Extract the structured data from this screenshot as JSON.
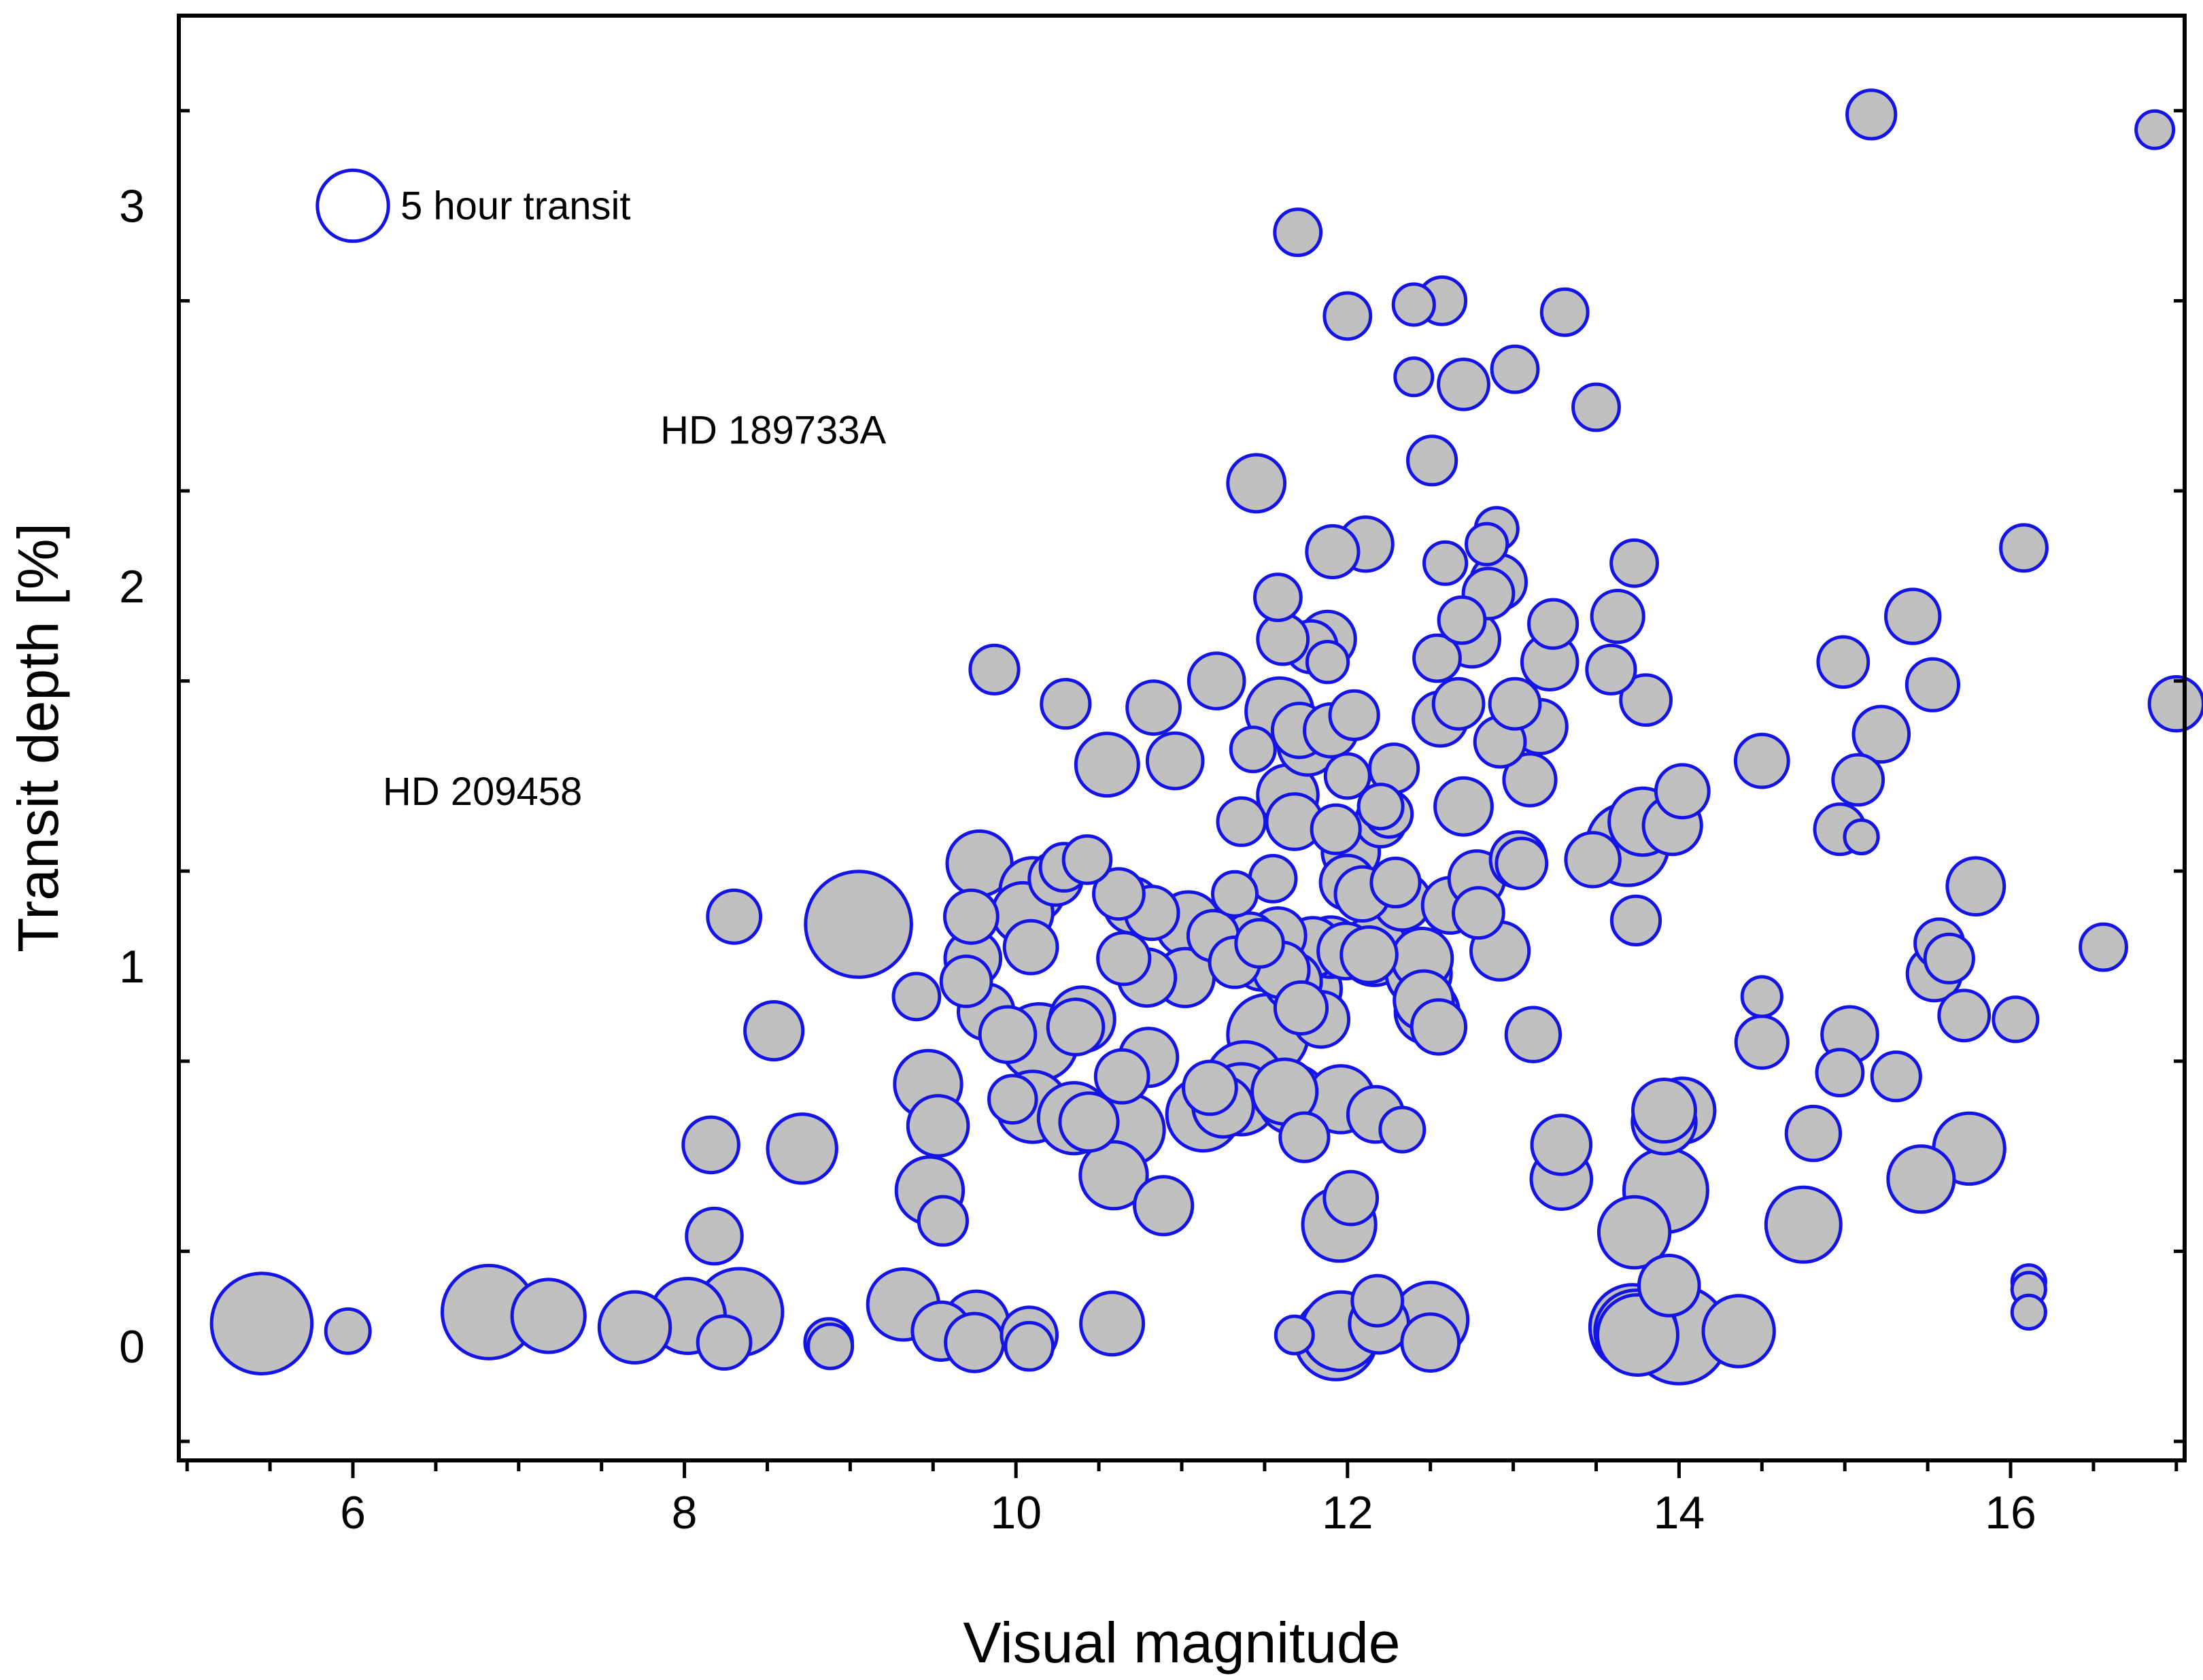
{
  "chart_data": {
    "type": "scatter",
    "title": "",
    "xlabel": "Visual magnitude",
    "ylabel": "Transit depth [%]",
    "xlim": [
      4.95,
      17.05
    ],
    "ylim": [
      -0.3,
      3.5
    ],
    "xticks": [
      6,
      8,
      10,
      12,
      14,
      16
    ],
    "yticks": [
      0,
      1,
      2,
      3
    ],
    "grid": false,
    "colors": {
      "edge": "#1414e6",
      "fill": "#c0c0c0",
      "axis": "#000000"
    },
    "size_encoding": "marker area proportional to transit duration",
    "legend": {
      "label": "5 hour transit",
      "x": 6.0,
      "y": 3.0,
      "size": 0.9,
      "position": "top-left"
    },
    "annotations": [
      {
        "label": "HD 189733A",
        "x": 7.67,
        "y": 2.41
      },
      {
        "label": "HD 209458",
        "x": 7.65,
        "y": 1.46
      }
    ],
    "series": [
      {
        "name": "planets",
        "points": [
          [
            5.45,
            0.06,
            1.8
          ],
          [
            5.97,
            0.04,
            0.35
          ],
          [
            6.82,
            0.09,
            1.55
          ],
          [
            7.18,
            0.08,
            0.95
          ],
          [
            7.7,
            0.05,
            0.9
          ],
          [
            8.02,
            0.08,
            1.0
          ],
          [
            8.33,
            0.09,
            1.35
          ],
          [
            8.24,
            0.01,
            0.5
          ],
          [
            8.18,
            0.29,
            0.55
          ],
          [
            8.16,
            0.53,
            0.55
          ],
          [
            8.3,
            1.13,
            0.5
          ],
          [
            8.54,
            0.83,
            0.6
          ],
          [
            8.71,
            0.52,
            0.85
          ],
          [
            8.87,
            0.01,
            0.4
          ],
          [
            8.88,
            0.0,
            0.35
          ],
          [
            9.05,
            1.11,
            2.0
          ],
          [
            9.32,
            0.11,
            0.9
          ],
          [
            9.4,
            0.92,
            0.38
          ],
          [
            9.47,
            0.69,
            0.8
          ],
          [
            9.53,
            0.58,
            0.65
          ],
          [
            9.48,
            0.41,
            0.8
          ],
          [
            9.56,
            0.33,
            0.42
          ],
          [
            9.55,
            0.04,
            0.6
          ],
          [
            9.7,
            0.96,
            0.45
          ],
          [
            9.73,
            1.13,
            0.5
          ],
          [
            9.74,
            1.02,
            0.55
          ],
          [
            9.78,
            1.27,
            0.75
          ],
          [
            9.82,
            0.88,
            0.55
          ],
          [
            9.87,
            1.78,
            0.42
          ],
          [
            9.76,
            0.06,
            0.75
          ],
          [
            9.75,
            0.01,
            0.6
          ],
          [
            9.95,
            0.82,
            0.55
          ],
          [
            9.98,
            0.65,
            0.4
          ],
          [
            10.04,
            1.14,
            0.65
          ],
          [
            10.09,
            1.05,
            0.5
          ],
          [
            10.1,
            1.2,
            0.75
          ],
          [
            10.08,
            0.03,
            0.55
          ],
          [
            10.08,
            0.0,
            0.4
          ],
          [
            10.1,
            0.63,
            0.9
          ],
          [
            10.14,
            0.8,
            1.05
          ],
          [
            10.24,
            1.23,
            0.5
          ],
          [
            10.29,
            1.26,
            0.4
          ],
          [
            10.3,
            1.69,
            0.42
          ],
          [
            10.36,
            0.84,
            0.55
          ],
          [
            10.4,
            0.86,
            0.75
          ],
          [
            10.35,
            0.6,
            0.9
          ],
          [
            10.44,
            0.59,
            0.6
          ],
          [
            10.43,
            1.28,
            0.4
          ],
          [
            10.55,
            1.53,
            0.7
          ],
          [
            10.59,
            0.45,
            0.8
          ],
          [
            10.58,
            0.06,
            0.7
          ],
          [
            10.62,
            1.19,
            0.45
          ],
          [
            10.64,
            0.71,
            0.5
          ],
          [
            10.65,
            1.02,
            0.48
          ],
          [
            10.7,
            1.16,
            0.55
          ],
          [
            10.68,
            0.57,
            0.9
          ],
          [
            10.79,
            0.97,
            0.58
          ],
          [
            10.8,
            0.76,
            0.6
          ],
          [
            10.82,
            1.14,
            0.5
          ],
          [
            10.83,
            1.68,
            0.5
          ],
          [
            10.89,
            0.37,
            0.6
          ],
          [
            10.96,
            1.54,
            0.55
          ],
          [
            11.02,
            0.97,
            0.6
          ],
          [
            11.04,
            1.11,
            0.75
          ],
          [
            11.13,
            0.61,
            0.95
          ],
          [
            11.17,
            0.68,
            0.5
          ],
          [
            11.19,
            1.08,
            0.45
          ],
          [
            11.21,
            1.75,
            0.55
          ],
          [
            11.25,
            0.63,
            0.65
          ],
          [
            11.32,
            1.01,
            0.45
          ],
          [
            11.32,
            1.19,
            0.35
          ],
          [
            11.36,
            1.38,
            0.4
          ],
          [
            11.36,
            0.65,
            0.9
          ],
          [
            11.38,
            0.7,
            1.05
          ],
          [
            11.41,
            1.07,
            0.5
          ],
          [
            11.43,
            1.57,
            0.35
          ],
          [
            11.45,
            2.27,
            0.58
          ],
          [
            11.47,
            1.06,
            0.4
          ],
          [
            11.48,
            1.01,
            0.55
          ],
          [
            11.52,
            0.82,
            1.15
          ],
          [
            11.55,
            1.23,
            0.38
          ],
          [
            11.58,
            1.08,
            0.55
          ],
          [
            11.58,
            1.97,
            0.38
          ],
          [
            11.59,
            1.67,
            0.8
          ],
          [
            11.6,
            0.99,
            0.55
          ],
          [
            11.61,
            1.86,
            0.45
          ],
          [
            11.62,
            0.67,
            0.75
          ],
          [
            11.64,
            1.45,
            0.65
          ],
          [
            11.67,
            0.65,
            0.85
          ],
          [
            11.67,
            0.96,
            0.58
          ],
          [
            11.68,
            1.38,
            0.55
          ],
          [
            11.68,
            0.03,
            0.25
          ],
          [
            11.7,
            2.93,
            0.38
          ],
          [
            11.71,
            1.62,
            0.52
          ],
          [
            11.72,
            0.89,
            0.48
          ],
          [
            11.74,
            0.55,
            0.42
          ],
          [
            11.76,
            1.58,
            0.62
          ],
          [
            11.78,
            1.84,
            0.48
          ],
          [
            11.78,
            0.94,
            0.65
          ],
          [
            11.79,
            1.05,
            0.62
          ],
          [
            11.84,
            0.86,
            0.55
          ],
          [
            11.88,
            1.86,
            0.55
          ],
          [
            11.88,
            1.8,
            0.3
          ],
          [
            11.9,
            1.05,
            0.65
          ],
          [
            11.9,
            1.62,
            0.5
          ],
          [
            11.91,
            2.09,
            0.48
          ],
          [
            11.93,
            1.36,
            0.42
          ],
          [
            11.93,
            0.02,
            1.2
          ],
          [
            11.95,
            0.32,
            0.95
          ],
          [
            11.96,
            0.04,
            1.1
          ],
          [
            11.96,
            0.65,
            0.8
          ],
          [
            11.99,
            1.04,
            0.55
          ],
          [
            12.0,
            1.5,
            0.35
          ],
          [
            12.0,
            2.71,
            0.38
          ],
          [
            12.0,
            1.22,
            0.52
          ],
          [
            12.02,
            1.3,
            0.58
          ],
          [
            12.02,
            0.39,
            0.5
          ],
          [
            12.04,
            1.66,
            0.42
          ],
          [
            12.09,
            1.19,
            0.52
          ],
          [
            12.11,
            2.11,
            0.52
          ],
          [
            12.13,
            1.03,
            0.55
          ],
          [
            12.16,
            1.04,
            0.85
          ],
          [
            12.17,
            0.61,
            0.55
          ],
          [
            12.18,
            0.12,
            0.45
          ],
          [
            12.19,
            0.06,
            0.62
          ],
          [
            12.2,
            1.38,
            0.45
          ],
          [
            12.2,
            1.42,
            0.35
          ],
          [
            12.25,
            1.4,
            0.38
          ],
          [
            12.28,
            1.52,
            0.42
          ],
          [
            12.29,
            1.22,
            0.42
          ],
          [
            12.33,
            1.17,
            0.58
          ],
          [
            12.33,
            0.57,
            0.35
          ],
          [
            12.4,
            2.55,
            0.25
          ],
          [
            12.4,
            2.74,
            0.3
          ],
          [
            12.43,
            0.98,
            0.75
          ],
          [
            12.45,
            1.02,
            0.65
          ],
          [
            12.46,
            0.91,
            0.62
          ],
          [
            12.48,
            0.88,
            0.72
          ],
          [
            12.5,
            0.07,
            1.0
          ],
          [
            12.5,
            0.01,
            0.58
          ],
          [
            12.51,
            2.33,
            0.42
          ],
          [
            12.54,
            1.81,
            0.38
          ],
          [
            12.55,
            0.84,
            0.52
          ],
          [
            12.56,
            1.65,
            0.52
          ],
          [
            12.57,
            2.75,
            0.4
          ],
          [
            12.59,
            2.06,
            0.32
          ],
          [
            12.62,
            1.16,
            0.55
          ],
          [
            12.67,
            1.69,
            0.45
          ],
          [
            12.69,
            1.91,
            0.38
          ],
          [
            12.7,
            2.53,
            0.45
          ],
          [
            12.7,
            1.42,
            0.58
          ],
          [
            12.75,
            1.86,
            0.55
          ],
          [
            12.78,
            1.23,
            0.55
          ],
          [
            12.79,
            1.14,
            0.45
          ],
          [
            12.84,
            2.11,
            0.3
          ],
          [
            12.85,
            1.98,
            0.45
          ],
          [
            12.9,
            2.15,
            0.32
          ],
          [
            12.91,
            2.01,
            0.55
          ],
          [
            12.92,
            1.59,
            0.45
          ],
          [
            12.92,
            1.04,
            0.6
          ],
          [
            13.01,
            1.69,
            0.45
          ],
          [
            13.01,
            2.57,
            0.38
          ],
          [
            13.03,
            1.28,
            0.55
          ],
          [
            13.05,
            1.27,
            0.45
          ],
          [
            13.1,
            1.49,
            0.48
          ],
          [
            13.12,
            0.82,
            0.52
          ],
          [
            13.16,
            1.63,
            0.52
          ],
          [
            13.22,
            1.8,
            0.55
          ],
          [
            13.24,
            1.9,
            0.42
          ],
          [
            13.29,
            0.53,
            0.62
          ],
          [
            13.29,
            0.44,
            0.65
          ],
          [
            13.31,
            2.72,
            0.38
          ],
          [
            13.48,
            1.28,
            0.52
          ],
          [
            13.5,
            2.47,
            0.38
          ],
          [
            13.59,
            1.78,
            0.42
          ],
          [
            13.63,
            1.92,
            0.48
          ],
          [
            13.69,
            1.32,
            1.2
          ],
          [
            13.72,
            0.05,
            1.3
          ],
          [
            13.74,
            0.04,
            1.2
          ],
          [
            13.75,
            0.03,
            1.15
          ],
          [
            13.73,
            0.3,
            0.9
          ],
          [
            13.73,
            2.06,
            0.38
          ],
          [
            13.74,
            1.12,
            0.42
          ],
          [
            13.78,
            1.38,
            0.8
          ],
          [
            13.8,
            1.7,
            0.45
          ],
          [
            13.91,
            0.62,
            0.7
          ],
          [
            13.91,
            0.59,
            0.72
          ],
          [
            13.92,
            0.41,
            1.25
          ],
          [
            13.94,
            0.16,
            0.65
          ],
          [
            13.96,
            1.37,
            0.6
          ],
          [
            14.0,
            0.03,
            1.7
          ],
          [
            14.02,
            0.62,
            0.75
          ],
          [
            14.02,
            1.46,
            0.5
          ],
          [
            14.36,
            0.04,
            0.9
          ],
          [
            14.5,
            0.8,
            0.48
          ],
          [
            14.5,
            0.92,
            0.28
          ],
          [
            14.5,
            1.54,
            0.5
          ],
          [
            14.75,
            0.32,
            1.0
          ],
          [
            14.81,
            0.56,
            0.52
          ],
          [
            14.97,
            1.36,
            0.45
          ],
          [
            14.97,
            0.72,
            0.38
          ],
          [
            14.99,
            1.8,
            0.45
          ],
          [
            15.03,
            0.82,
            0.55
          ],
          [
            15.08,
            1.49,
            0.45
          ],
          [
            15.1,
            1.34,
            0.2
          ],
          [
            15.16,
            3.24,
            0.42
          ],
          [
            15.22,
            1.61,
            0.55
          ],
          [
            15.31,
            0.71,
            0.42
          ],
          [
            15.41,
            1.92,
            0.52
          ],
          [
            15.46,
            0.44,
            0.78
          ],
          [
            15.53,
            1.74,
            0.48
          ],
          [
            15.54,
            0.98,
            0.52
          ],
          [
            15.57,
            1.06,
            0.42
          ],
          [
            15.63,
            1.02,
            0.42
          ],
          [
            15.72,
            0.87,
            0.45
          ],
          [
            15.75,
            0.52,
            0.9
          ],
          [
            15.79,
            1.21,
            0.58
          ],
          [
            16.03,
            0.86,
            0.35
          ],
          [
            16.08,
            2.1,
            0.38
          ],
          [
            16.11,
            0.17,
            0.2
          ],
          [
            16.11,
            0.15,
            0.2
          ],
          [
            16.11,
            0.09,
            0.2
          ],
          [
            16.56,
            1.05,
            0.38
          ],
          [
            16.87,
            3.2,
            0.25
          ],
          [
            17.0,
            1.69,
            0.52
          ]
        ]
      }
    ]
  }
}
